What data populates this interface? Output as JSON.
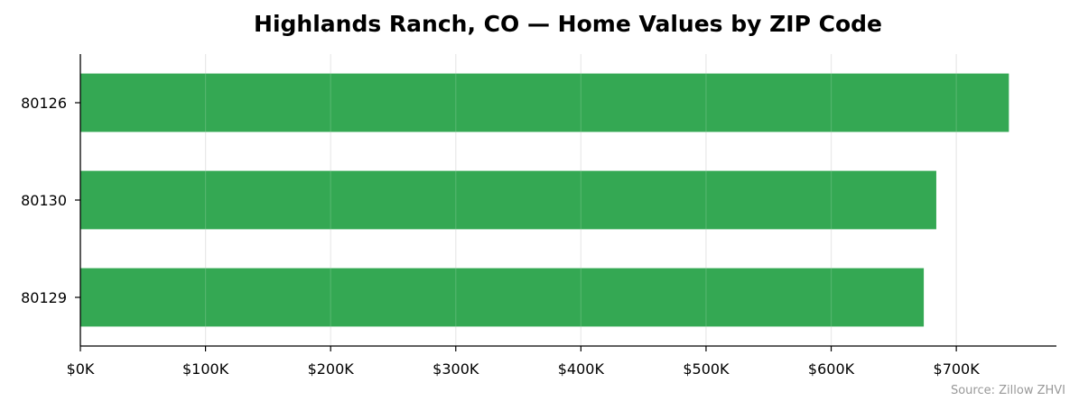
{
  "chart_data": {
    "type": "bar",
    "orientation": "horizontal",
    "title": "Highlands Ranch, CO — Home Values by ZIP Code",
    "xlabel": "",
    "ylabel": "",
    "categories": [
      "80126",
      "80130",
      "80129"
    ],
    "values": [
      742000,
      684000,
      674000
    ],
    "xlim": [
      0,
      780000
    ],
    "x_ticks": [
      0,
      100000,
      200000,
      300000,
      400000,
      500000,
      600000,
      700000
    ],
    "x_tick_labels": [
      "$0K",
      "$100K",
      "$200K",
      "$300K",
      "$400K",
      "$500K",
      "$600K",
      "$700K"
    ],
    "grid": "vertical",
    "bar_color": "#34a853",
    "source": "Source: Zillow ZHVI"
  }
}
